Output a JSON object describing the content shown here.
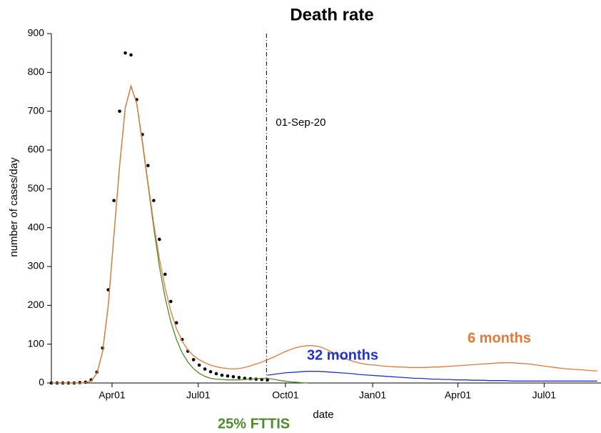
{
  "chart_data": {
    "type": "line",
    "title": "Death rate",
    "xlabel": "date",
    "ylabel": "number of cases/day",
    "xlim": [
      27,
      607
    ],
    "xticks": [
      {
        "value": 91,
        "label": "Apr01"
      },
      {
        "value": 182,
        "label": "Jul01"
      },
      {
        "value": 274,
        "label": "Oct01"
      },
      {
        "value": 366,
        "label": "Jan01"
      },
      {
        "value": 456,
        "label": "Apr01"
      },
      {
        "value": 547,
        "label": "Jul01"
      }
    ],
    "ylim": [
      0,
      900
    ],
    "yticks": [
      0,
      100,
      200,
      300,
      400,
      500,
      600,
      700,
      800,
      900
    ],
    "grid": false,
    "vline": {
      "value": 254,
      "label": "01-Sep-20"
    },
    "x": [
      27,
      33,
      39,
      45,
      51,
      57,
      63,
      69,
      75,
      81,
      87,
      93,
      99,
      105,
      111,
      117,
      123,
      129,
      135,
      141,
      147,
      153,
      159,
      165,
      171,
      177,
      183,
      189,
      195,
      201,
      207,
      213,
      219,
      225,
      231,
      237,
      243,
      249,
      255,
      261,
      267,
      273,
      279,
      285,
      291,
      297,
      303,
      309,
      315,
      321,
      327,
      333,
      339,
      345,
      351,
      357,
      363,
      369,
      375,
      381,
      387,
      393,
      399,
      405,
      411,
      417,
      423,
      429,
      435,
      441,
      447,
      453,
      459,
      465,
      471,
      477,
      483,
      489,
      495,
      501,
      507,
      513,
      519,
      525,
      531,
      537,
      543,
      549,
      555,
      561,
      567,
      573,
      579,
      585,
      591,
      597,
      603
    ],
    "series": [
      {
        "mode": "markers",
        "color": "#000000",
        "values": [
          0,
          0,
          0,
          0,
          0,
          1,
          2,
          8,
          28,
          90,
          240,
          470,
          700,
          850,
          845,
          730,
          640,
          560,
          470,
          370,
          280,
          210,
          155,
          112,
          82,
          60,
          46,
          36,
          29,
          24,
          20,
          18,
          16,
          14,
          12,
          11,
          10,
          9,
          8,
          null,
          null,
          null,
          null,
          null,
          null,
          null,
          null,
          null,
          null,
          null,
          null,
          null,
          null,
          null,
          null,
          null,
          null,
          null,
          null,
          null,
          null,
          null,
          null,
          null,
          null,
          null,
          null,
          null,
          null,
          null,
          null,
          null,
          null,
          null,
          null,
          null,
          null,
          null,
          null,
          null,
          null,
          null,
          null,
          null,
          null,
          null,
          null,
          null,
          null,
          null,
          null,
          null,
          null,
          null,
          null,
          null,
          null
        ]
      },
      {
        "name": "25% FTTIS",
        "mode": "line",
        "color": "#4f8a2f",
        "values": [
          0,
          0,
          0,
          0,
          0,
          0,
          1,
          5,
          25,
          80,
          200,
          380,
          560,
          710,
          765,
          720,
          620,
          510,
          400,
          300,
          220,
          158,
          112,
          78,
          54,
          37,
          25,
          17,
          12,
          10,
          9,
          8,
          8,
          8,
          9,
          10,
          11,
          12,
          12,
          10,
          7,
          5,
          3,
          2,
          1,
          0,
          null,
          null,
          null,
          null,
          null,
          null,
          null,
          null,
          null,
          null,
          null,
          null,
          null,
          null,
          null,
          null,
          null,
          null,
          null,
          null,
          null,
          null,
          null,
          null,
          null,
          null,
          null,
          null,
          null,
          null,
          null,
          null,
          null,
          null,
          null,
          null,
          null,
          null,
          null,
          null,
          null,
          null,
          null,
          null,
          null,
          null,
          null,
          null,
          null,
          null,
          null
        ]
      },
      {
        "name": "6 months",
        "mode": "line",
        "color": "#e07a3a",
        "values": [
          0,
          0,
          0,
          0,
          0,
          0,
          1,
          5,
          25,
          80,
          200,
          380,
          560,
          710,
          765,
          720,
          625,
          515,
          410,
          320,
          245,
          185,
          140,
          108,
          85,
          70,
          60,
          52,
          46,
          42,
          39,
          37,
          36,
          37,
          40,
          44,
          49,
          54,
          60,
          66,
          73,
          80,
          86,
          91,
          94,
          96,
          96,
          94,
          89,
          82,
          74,
          67,
          61,
          56,
          52,
          49,
          47,
          46,
          44,
          43,
          42,
          41,
          41,
          40,
          40,
          40,
          40,
          41,
          41,
          42,
          43,
          44,
          45,
          46,
          47,
          48,
          49,
          50,
          51,
          52,
          52,
          52,
          51,
          50,
          49,
          47,
          45,
          43,
          41,
          39,
          37,
          36,
          35,
          34,
          33,
          32,
          31
        ]
      },
      {
        "name": "32 months",
        "mode": "line",
        "color": "#2233cc",
        "values": [
          null,
          null,
          null,
          null,
          null,
          null,
          null,
          null,
          null,
          null,
          null,
          null,
          null,
          null,
          null,
          null,
          null,
          null,
          null,
          null,
          null,
          null,
          null,
          null,
          null,
          null,
          null,
          null,
          null,
          null,
          null,
          null,
          null,
          null,
          null,
          null,
          null,
          null,
          20,
          22,
          24,
          26,
          27,
          28,
          29,
          30,
          30,
          30,
          29,
          28,
          27,
          26,
          25,
          24,
          22,
          21,
          20,
          19,
          18,
          17,
          16,
          15,
          14,
          13,
          12,
          12,
          11,
          10,
          10,
          9,
          9,
          8,
          8,
          8,
          7,
          7,
          7,
          6,
          6,
          6,
          6,
          5,
          5,
          5,
          5,
          5,
          5,
          5,
          5,
          5,
          5,
          5,
          5,
          5,
          5,
          5,
          5
        ]
      }
    ]
  }
}
